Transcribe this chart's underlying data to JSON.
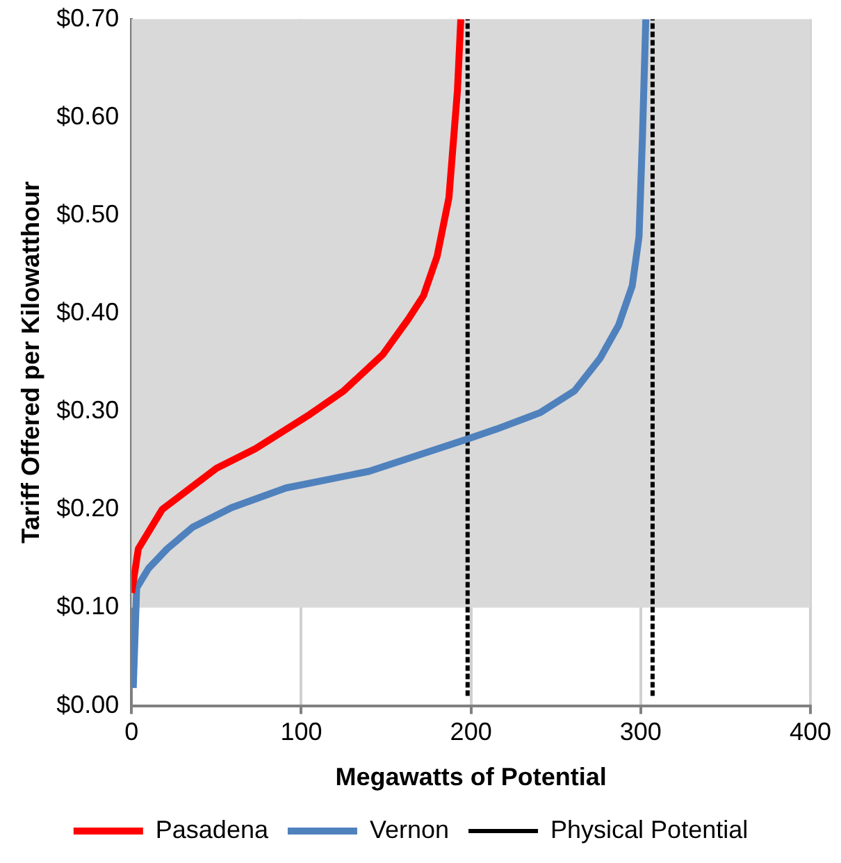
{
  "chart_data": {
    "type": "line",
    "xlabel": "Megawatts of Potential",
    "ylabel": "Tariff Offered per Kilowatthour",
    "xlim": [
      0,
      400
    ],
    "xticks": [
      0,
      100,
      200,
      300,
      400
    ],
    "ylim": [
      0,
      0.7
    ],
    "yticks": [
      {
        "value": 0,
        "label": "$0.00"
      },
      {
        "value": 0.1,
        "label": "$0.10"
      },
      {
        "value": 0.2,
        "label": "$0.20"
      },
      {
        "value": 0.3,
        "label": "$0.30"
      },
      {
        "value": 0.4,
        "label": "$0.40"
      },
      {
        "value": 0.5,
        "label": "$0.50"
      },
      {
        "value": 0.6,
        "label": "$0.60"
      },
      {
        "value": 0.7,
        "label": "$0.70"
      }
    ],
    "grid": "x",
    "legend": "bottom",
    "marker": "none",
    "bands": [
      {
        "axis": "y",
        "from": 0.1,
        "to": 0.7,
        "color": "#d9d9d9"
      }
    ],
    "series": [
      {
        "name": "Pasadena",
        "color": "#ff0000",
        "line_style": "solid",
        "x": [
          0,
          4,
          18,
          50,
          73,
          105,
          125,
          148,
          163,
          172,
          180,
          187,
          192,
          194
        ],
        "values": [
          0.115,
          0.16,
          0.2,
          0.242,
          0.262,
          0.297,
          0.321,
          0.358,
          0.394,
          0.418,
          0.458,
          0.518,
          0.627,
          0.7
        ]
      },
      {
        "name": "Vernon",
        "color": "#4f81bd",
        "line_style": "solid",
        "x": [
          1,
          3,
          10,
          21,
          36,
          59,
          91,
          140,
          198,
          215,
          241,
          261,
          276,
          287,
          295,
          299,
          301,
          303
        ],
        "values": [
          0.018,
          0.12,
          0.14,
          0.16,
          0.182,
          0.202,
          0.222,
          0.239,
          0.272,
          0.282,
          0.299,
          0.321,
          0.354,
          0.388,
          0.428,
          0.478,
          0.578,
          0.7
        ]
      },
      {
        "name": "Physical Potential",
        "color": "#000000",
        "line_style": "dashed",
        "x": [
          198,
          198,
          250,
          307,
          307
        ],
        "values": [
          0.01,
          0.7,
          null,
          0.01,
          0.7
        ]
      }
    ]
  }
}
